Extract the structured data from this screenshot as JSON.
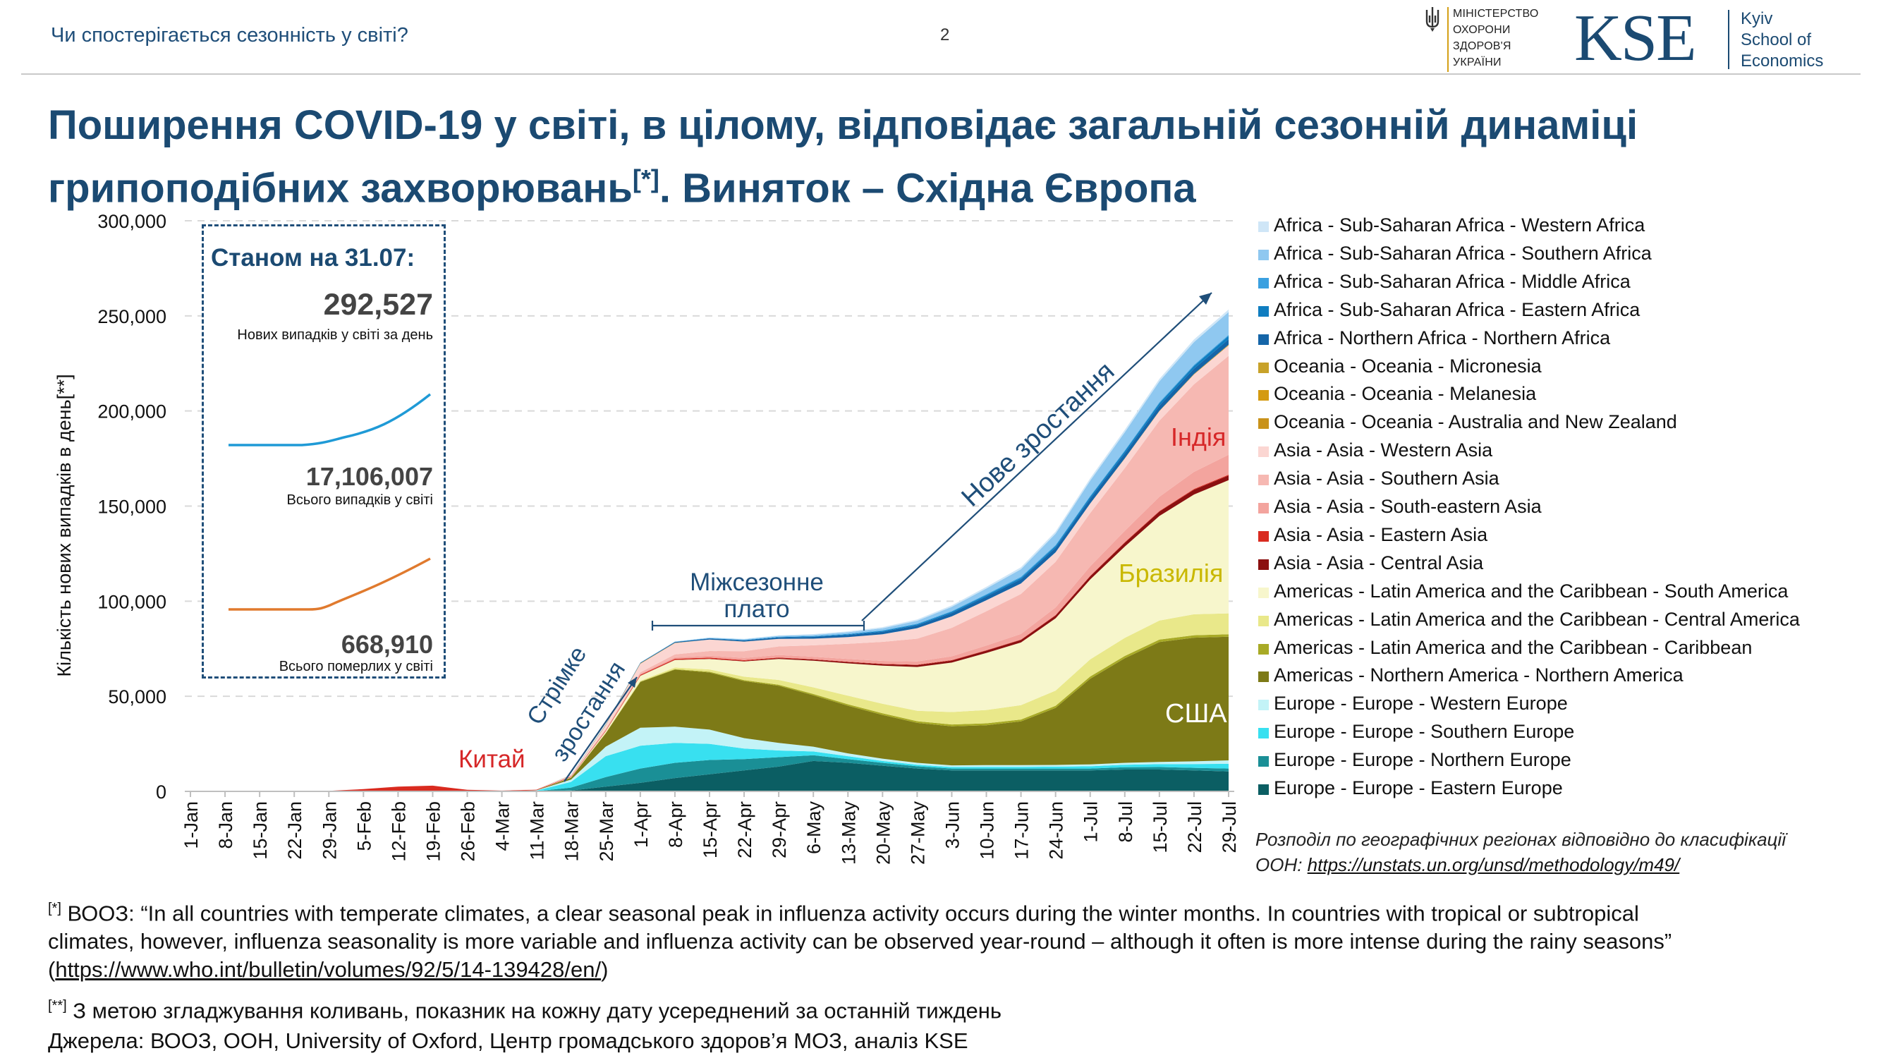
{
  "header": {
    "section": "Чи спостерігається сезонність у світі?",
    "page_number": "2",
    "ministry_lines": [
      "МІНІСТЕРСТВО",
      "ОХОРОНИ",
      "ЗДОРОВ'Я",
      "УКРАЇНИ"
    ],
    "kse_logo": "KSE",
    "kse_name_lines": [
      "Kyiv",
      "School of",
      "Economics"
    ]
  },
  "slide_title_line1": "Поширення COVID-19 у світі, в цілому, відповідає загальній сезонній динаміці",
  "slide_title_line2": "грипоподібних захворювань",
  "slide_title_sup": "[*]",
  "slide_title_line2_end": ". Виняток – Східна Європа",
  "inset": {
    "title": "Станом на 31.07:",
    "daily_value": "292,527",
    "daily_label": "Нових випадків у світі за день",
    "total_value": "17,106,007",
    "total_label": "Всього випадків у світі",
    "deaths_value": "668,910",
    "deaths_label": "Всього померлих у світі",
    "colors": {
      "cases_line": "#1f9ad6",
      "deaths_line": "#e07a2e"
    }
  },
  "annotations": {
    "china": "Китай",
    "rapid_growth_1": "Стрімке",
    "rapid_growth_2": "зростання",
    "plateau_1": "Міжсезонне",
    "plateau_2": "плато",
    "new_growth": "Нове зростання",
    "india": "Індія",
    "brazil": "Бразилія",
    "usa": "США"
  },
  "classification_note_line1": "Розподіл по географічних регіонах відповідно до класифікації",
  "classification_note_prefix": "ООН: ",
  "classification_note_link": "https://unstats.un.org/unsd/methodology/m49/",
  "footnotes": {
    "who_mark": "[*]",
    "who_text_1": " ВООЗ: “In all countries with temperate climates, a clear seasonal peak in influenza activity occurs during the winter months. In countries with tropical or subtropical",
    "who_text_2": "climates, however, influenza seasonality is more variable and influenza activity can be observed year-round – although it often is more intense during the rainy seasons”",
    "who_link_open": "(",
    "who_link": "https://www.who.int/bulletin/volumes/92/5/14-139428/en/",
    "who_link_close": ")",
    "smoothing_mark": "[**]",
    "smoothing_text": " З метою згладжування коливань, показник на кожну дату усереднений за останній тиждень",
    "sources": "Джерела: ВООЗ, ООН, University of Oxford, Центр громадського здоров’я МОЗ, аналіз KSE"
  },
  "chart_data": {
    "type": "area",
    "stacked": true,
    "ylabel": "Кількість нових випадків в день[**]",
    "xlabel": "",
    "ylim": [
      0,
      300000
    ],
    "yticks": [
      0,
      50000,
      100000,
      150000,
      200000,
      250000,
      300000
    ],
    "ytick_labels": [
      "0",
      "50,000",
      "100,000",
      "150,000",
      "200,000",
      "250,000",
      "300,000"
    ],
    "grid": true,
    "legend_position": "right",
    "x_tick_labels": [
      "1-Jan",
      "8-Jan",
      "15-Jan",
      "22-Jan",
      "29-Jan",
      "5-Feb",
      "12-Feb",
      "19-Feb",
      "26-Feb",
      "4-Mar",
      "11-Mar",
      "18-Mar",
      "25-Mar",
      "1-Apr",
      "8-Apr",
      "15-Apr",
      "22-Apr",
      "29-Apr",
      "6-May",
      "13-May",
      "20-May",
      "27-May",
      "3-Jun",
      "10-Jun",
      "17-Jun",
      "24-Jun",
      "1-Jul",
      "8-Jul",
      "15-Jul",
      "22-Jul",
      "29-Jul"
    ],
    "x": [
      "1-Jan",
      "8-Jan",
      "15-Jan",
      "22-Jan",
      "29-Jan",
      "5-Feb",
      "12-Feb",
      "19-Feb",
      "26-Feb",
      "4-Mar",
      "11-Mar",
      "18-Mar",
      "25-Mar",
      "1-Apr",
      "8-Apr",
      "15-Apr",
      "22-Apr",
      "29-Apr",
      "6-May",
      "13-May",
      "20-May",
      "27-May",
      "3-Jun",
      "10-Jun",
      "17-Jun",
      "24-Jun",
      "1-Jul",
      "8-Jul",
      "15-Jul",
      "22-Jul",
      "29-Jul"
    ],
    "series": [
      {
        "name": "Europe - Europe - Eastern Europe",
        "color": "#0b5e63",
        "values": [
          0,
          0,
          0,
          0,
          0,
          0,
          0,
          0,
          0,
          0,
          0,
          500,
          2500,
          4500,
          7000,
          9000,
          11000,
          13000,
          16000,
          15000,
          13500,
          12000,
          11000,
          11000,
          11000,
          11000,
          11000,
          11500,
          11500,
          11000,
          10500
        ]
      },
      {
        "name": "Europe - Europe - Northern Europe",
        "color": "#1a8f96",
        "values": [
          0,
          0,
          0,
          0,
          0,
          0,
          0,
          0,
          0,
          0,
          100,
          1500,
          5000,
          7500,
          8000,
          7500,
          6000,
          5000,
          3000,
          2000,
          1500,
          1200,
          1000,
          1000,
          1000,
          1000,
          1000,
          1200,
          1300,
          1400,
          1500
        ]
      },
      {
        "name": "Europe - Europe - Southern Europe",
        "color": "#38e0f0",
        "values": [
          0,
          0,
          0,
          0,
          0,
          0,
          0,
          0,
          0,
          0,
          300,
          3000,
          11000,
          12000,
          10500,
          8500,
          5500,
          3500,
          2000,
          1500,
          1000,
          800,
          800,
          900,
          900,
          1000,
          1200,
          1300,
          1500,
          2000,
          2500
        ]
      },
      {
        "name": "Europe - Europe - Western Europe",
        "color": "#c3f3f7",
        "values": [
          0,
          0,
          0,
          0,
          0,
          0,
          0,
          0,
          0,
          0,
          150,
          1200,
          5000,
          9500,
          8500,
          7500,
          5500,
          4000,
          2500,
          1500,
          1200,
          1000,
          900,
          900,
          900,
          900,
          1000,
          1000,
          1200,
          1400,
          1800
        ]
      },
      {
        "name": "Americas - Northern America - Northern America",
        "color": "#7d7a17",
        "values": [
          0,
          0,
          0,
          0,
          0,
          0,
          0,
          0,
          0,
          0,
          50,
          1000,
          7000,
          24000,
          30000,
          30000,
          30000,
          30000,
          27000,
          25000,
          23000,
          21000,
          20500,
          21000,
          23000,
          30000,
          45000,
          55000,
          63000,
          65000,
          65000
        ]
      },
      {
        "name": "Americas - Latin America and the Caribbean - Caribbean",
        "color": "#a8aa26",
        "values": [
          0,
          0,
          0,
          0,
          0,
          0,
          0,
          0,
          0,
          0,
          0,
          50,
          100,
          200,
          300,
          400,
          500,
          600,
          700,
          800,
          900,
          900,
          1000,
          1000,
          1000,
          1100,
          1200,
          1200,
          1300,
          1300,
          1300
        ]
      },
      {
        "name": "Americas - Latin America and the Caribbean - Central America",
        "color": "#e9e88a",
        "values": [
          0,
          0,
          0,
          0,
          0,
          0,
          0,
          0,
          0,
          0,
          0,
          50,
          200,
          500,
          800,
          1200,
          1800,
          2500,
          3500,
          4500,
          5000,
          5500,
          6500,
          7000,
          7500,
          8000,
          9000,
          9500,
          10000,
          11000,
          11000
        ]
      },
      {
        "name": "Americas - Latin America and the Caribbean - South America",
        "color": "#f7f6cc",
        "values": [
          0,
          0,
          0,
          0,
          0,
          0,
          0,
          0,
          0,
          0,
          0,
          200,
          800,
          2500,
          4000,
          5500,
          8000,
          11000,
          14000,
          17000,
          20000,
          23000,
          26000,
          30000,
          33000,
          38000,
          42000,
          48000,
          55000,
          63000,
          70000
        ]
      },
      {
        "name": "Asia - Asia - Central Asia",
        "color": "#8b1010",
        "values": [
          0,
          0,
          0,
          0,
          0,
          0,
          0,
          0,
          0,
          0,
          0,
          0,
          0,
          100,
          100,
          200,
          300,
          500,
          600,
          700,
          800,
          1000,
          1100,
          1200,
          1300,
          1500,
          1700,
          2000,
          2300,
          2500,
          2500
        ]
      },
      {
        "name": "Asia - Asia - Eastern Asia",
        "color": "#d92b20",
        "values": [
          0,
          0,
          0,
          100,
          300,
          1200,
          2500,
          3000,
          800,
          400,
          300,
          300,
          400,
          500,
          500,
          500,
          400,
          300,
          200,
          200,
          200,
          200,
          200,
          200,
          200,
          200,
          200,
          300,
          300,
          400,
          400
        ]
      },
      {
        "name": "Asia - Asia - South-eastern Asia",
        "color": "#f3a49e",
        "values": [
          0,
          0,
          0,
          0,
          0,
          0,
          0,
          0,
          0,
          0,
          20,
          100,
          300,
          500,
          800,
          1000,
          1200,
          1300,
          1300,
          1400,
          1500,
          1700,
          2000,
          2500,
          3000,
          4000,
          5000,
          6000,
          7500,
          9000,
          10500
        ]
      },
      {
        "name": "Asia - Asia - Southern Asia",
        "color": "#f6b8b2",
        "values": [
          0,
          0,
          0,
          0,
          0,
          0,
          0,
          0,
          0,
          0,
          50,
          200,
          500,
          800,
          1500,
          2500,
          3500,
          4500,
          6000,
          8000,
          10000,
          12000,
          15000,
          18000,
          21000,
          24000,
          28000,
          33000,
          40000,
          46000,
          52000
        ]
      },
      {
        "name": "Asia - Asia - Western Asia",
        "color": "#fbd6d2",
        "values": [
          0,
          0,
          0,
          0,
          0,
          0,
          0,
          0,
          0,
          0,
          50,
          400,
          2000,
          4500,
          6000,
          6000,
          5000,
          4000,
          3500,
          3500,
          4000,
          5500,
          6000,
          5800,
          5500,
          5000,
          5000,
          5000,
          5000,
          5200,
          5500
        ]
      },
      {
        "name": "Oceania - Oceania - Australia and New Zealand",
        "color": "#c9921a",
        "values": [
          0,
          0,
          0,
          0,
          0,
          0,
          0,
          0,
          0,
          0,
          0,
          50,
          200,
          200,
          100,
          50,
          50,
          0,
          0,
          0,
          0,
          0,
          0,
          0,
          0,
          0,
          50,
          100,
          200,
          300,
          400
        ]
      },
      {
        "name": "Oceania - Oceania - Melanesia",
        "color": "#d49a10",
        "values": [
          0,
          0,
          0,
          0,
          0,
          0,
          0,
          0,
          0,
          0,
          0,
          0,
          0,
          0,
          0,
          0,
          0,
          0,
          0,
          0,
          0,
          0,
          0,
          0,
          0,
          0,
          0,
          0,
          0,
          0,
          0
        ]
      },
      {
        "name": "Oceania - Oceania - Micronesia",
        "color": "#c8a22a",
        "values": [
          0,
          0,
          0,
          0,
          0,
          0,
          0,
          0,
          0,
          0,
          0,
          0,
          0,
          0,
          0,
          0,
          0,
          0,
          0,
          0,
          0,
          0,
          0,
          0,
          0,
          0,
          0,
          0,
          0,
          0,
          0
        ]
      },
      {
        "name": "Africa - Northern Africa - Northern Africa",
        "color": "#1565a8",
        "values": [
          0,
          0,
          0,
          0,
          0,
          0,
          0,
          0,
          0,
          0,
          0,
          50,
          150,
          300,
          400,
          500,
          600,
          700,
          900,
          1100,
          1300,
          1500,
          1800,
          2000,
          2200,
          2400,
          2500,
          2600,
          2700,
          2700,
          2800
        ]
      },
      {
        "name": "Africa - Sub-Saharan Africa - Eastern Africa",
        "color": "#0f7dc0",
        "values": [
          0,
          0,
          0,
          0,
          0,
          0,
          0,
          0,
          0,
          0,
          0,
          0,
          20,
          50,
          80,
          120,
          180,
          250,
          300,
          400,
          450,
          550,
          600,
          700,
          800,
          900,
          1000,
          1100,
          1300,
          1500,
          1800
        ]
      },
      {
        "name": "Africa - Sub-Saharan Africa - Middle Africa",
        "color": "#3aa0e0",
        "values": [
          0,
          0,
          0,
          0,
          0,
          0,
          0,
          0,
          0,
          0,
          0,
          0,
          10,
          30,
          50,
          80,
          120,
          160,
          200,
          250,
          300,
          350,
          400,
          450,
          500,
          500,
          500,
          500,
          500,
          500,
          500
        ]
      },
      {
        "name": "Africa - Sub-Saharan Africa - Southern Africa",
        "color": "#8fc8f0",
        "values": [
          0,
          0,
          0,
          0,
          0,
          0,
          0,
          0,
          0,
          0,
          0,
          10,
          50,
          100,
          150,
          250,
          350,
          450,
          600,
          800,
          1100,
          1500,
          2200,
          3000,
          4000,
          6000,
          8000,
          9500,
          11000,
          12000,
          12000
        ]
      },
      {
        "name": "Africa - Sub-Saharan Africa - Western Africa",
        "color": "#cfe6f7",
        "values": [
          0,
          0,
          0,
          0,
          0,
          0,
          0,
          0,
          0,
          0,
          0,
          0,
          20,
          40,
          80,
          120,
          200,
          300,
          400,
          500,
          600,
          700,
          800,
          900,
          1000,
          1100,
          1200,
          1300,
          1300,
          1400,
          1400
        ]
      }
    ]
  }
}
